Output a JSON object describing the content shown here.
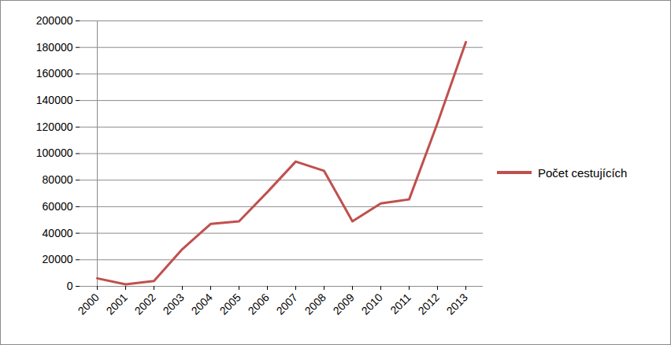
{
  "chart_data": {
    "type": "line",
    "categories": [
      "2000",
      "2001",
      "2002",
      "2003",
      "2004",
      "2005",
      "2006",
      "2007",
      "2008",
      "2009",
      "2010",
      "2011",
      "2012",
      "2013"
    ],
    "series": [
      {
        "name": "Počet cestujících",
        "color": "#c0504d",
        "values": [
          6000,
          1500,
          4000,
          28000,
          47000,
          49000,
          71000,
          94000,
          87000,
          49000,
          62500,
          65500,
          123000,
          184000
        ]
      }
    ],
    "ylim": [
      0,
      200000
    ],
    "yticks": [
      0,
      20000,
      40000,
      60000,
      80000,
      100000,
      120000,
      140000,
      160000,
      180000,
      200000
    ],
    "grid": true,
    "legend": "right"
  }
}
